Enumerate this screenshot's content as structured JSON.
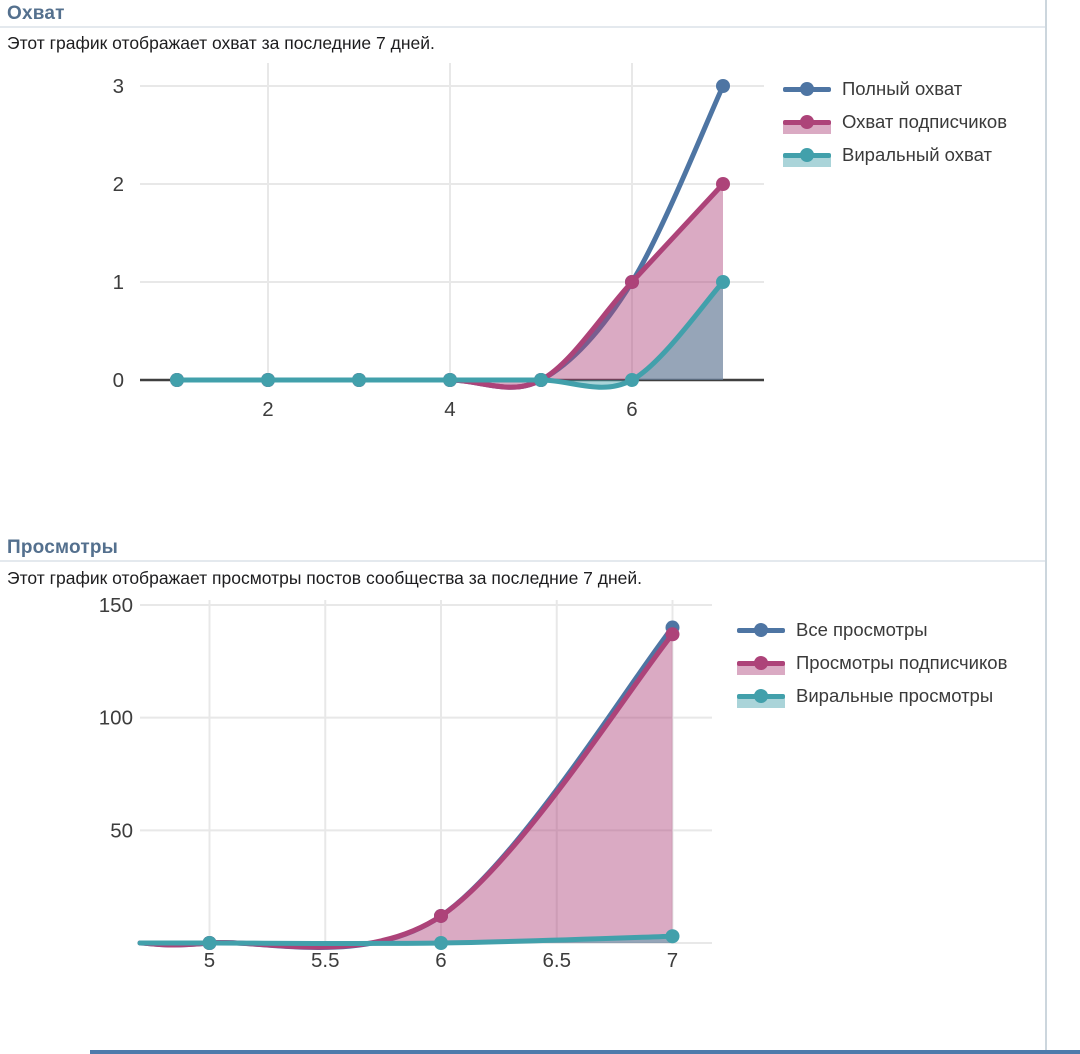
{
  "sections": {
    "reach": {
      "title": "Охват",
      "description": "Этот график отображает охват за последние 7 дней."
    },
    "views": {
      "title": "Просмотры",
      "description": "Этот график отображает просмотры постов сообщества за последние 7 дней."
    }
  },
  "colors": {
    "blue": "#4e75a3",
    "pink": "#ad4379",
    "teal": "#42a0ab",
    "grid": "#e8e8e8",
    "axis": "#3f3f3f",
    "tick_label": "#3d3d3d",
    "header": "#54708e",
    "header_rule": "#e4e9ee",
    "right_border": "#ccd6dd",
    "bottom_bar": "#4e7bab"
  },
  "chart_data": [
    {
      "type": "line",
      "title": "Охват",
      "x": [
        1,
        2,
        3,
        4,
        5,
        6,
        7
      ],
      "series": [
        {
          "name": "Полный охват",
          "color": "#4e75a3",
          "fill": false,
          "values": [
            0,
            0,
            0,
            0,
            0,
            1,
            3
          ]
        },
        {
          "name": "Охват подписчиков",
          "color": "#ad4379",
          "fill": true,
          "values": [
            0,
            0,
            0,
            0,
            0,
            1,
            2
          ]
        },
        {
          "name": "Виральный охват",
          "color": "#42a0ab",
          "fill": true,
          "values": [
            0,
            0,
            0,
            0,
            0,
            0,
            1
          ]
        }
      ],
      "xticks": [
        2,
        4,
        6
      ],
      "yticks": [
        0,
        1,
        2,
        3
      ],
      "xlim": [
        0.6,
        7.45
      ],
      "ylim": [
        0,
        3.3
      ],
      "xlabel": "",
      "ylabel": "",
      "grid": true,
      "legend_position": "right"
    },
    {
      "type": "line",
      "title": "Просмотры",
      "x": [
        5,
        6,
        7
      ],
      "series": [
        {
          "name": "Все просмотры",
          "color": "#4e75a3",
          "fill": false,
          "values": [
            0,
            12,
            140
          ]
        },
        {
          "name": "Просмотры подписчиков",
          "color": "#ad4379",
          "fill": true,
          "values": [
            0,
            12,
            137
          ]
        },
        {
          "name": "Виральные просмотры",
          "color": "#42a0ab",
          "fill": true,
          "values": [
            0,
            0,
            3
          ]
        }
      ],
      "xticks": [
        5,
        5.5,
        6,
        6.5,
        7
      ],
      "yticks": [
        50,
        100,
        150
      ],
      "xlim": [
        4.71,
        7.18
      ],
      "ylim": [
        -2,
        152
      ],
      "xlabel": "",
      "ylabel": "",
      "grid": true,
      "legend_position": "right"
    }
  ]
}
